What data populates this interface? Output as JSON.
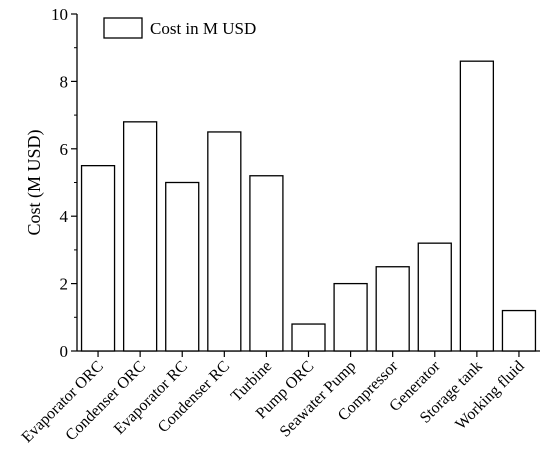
{
  "chart_data": {
    "type": "bar",
    "categories": [
      "Evaporator ORC",
      "Condenser ORC",
      "Evaporator RC",
      "Condenser RC",
      "Turbine",
      "Pump ORC",
      "Seawater Pump",
      "Compressor",
      "Generator",
      "Storage tank",
      "Working fluid"
    ],
    "values": [
      5.5,
      6.8,
      5.0,
      6.5,
      5.2,
      0.8,
      2.0,
      2.5,
      3.2,
      8.6,
      1.2
    ],
    "series": [
      {
        "name": "Cost in M USD",
        "values": [
          5.5,
          6.8,
          5.0,
          6.5,
          5.2,
          0.8,
          2.0,
          2.5,
          3.2,
          8.6,
          1.2
        ]
      }
    ],
    "ylabel": "Cost (M USD)",
    "xlabel": "",
    "ylim": [
      0,
      10
    ],
    "yticks": [
      0,
      2,
      4,
      6,
      8,
      10
    ],
    "legend_position": "top-left",
    "grid": false,
    "colors": {
      "bar_fill": "#ffffff",
      "bar_stroke": "#000000"
    }
  }
}
